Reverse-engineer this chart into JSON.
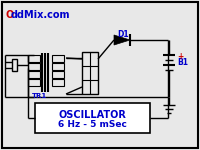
{
  "bg_color": "#e8e8e8",
  "border_color": "#000000",
  "line_color": "#000000",
  "blue_color": "#0000cc",
  "red_color": "#cc0000",
  "white": "#ffffff",
  "title_O": "O",
  "title_rest": "ddMix.com",
  "tr1_label": "TR1",
  "d1_label": "D1",
  "b1_label": "B1",
  "plus_label": "+",
  "osc_line1": "OSCILLATOR",
  "osc_line2": "6 Hz - 5 mSec"
}
